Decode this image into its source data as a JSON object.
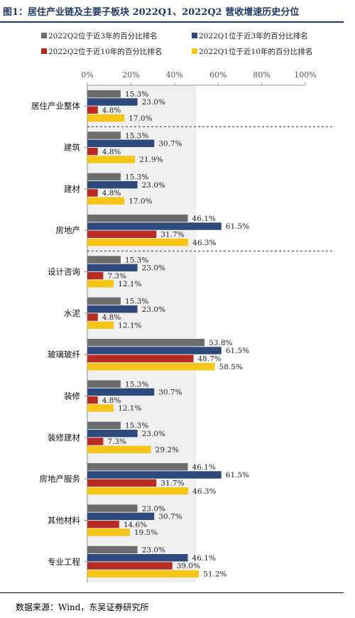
{
  "title": "图1：居住产业链及主要子板块 2022Q1、2022Q2 营收增速历史分位",
  "source": "数据来源：Wind，东吴证券研究所",
  "colors": {
    "title": "#1f3864",
    "q2_3yr": "#6d6d6d",
    "q1_3yr": "#2e4a7d",
    "q2_10yr": "#b72b24",
    "q1_10yr": "#f5c518",
    "shade": "#f0f0f0"
  },
  "chart_data": {
    "type": "bar",
    "orientation": "horizontal",
    "categories": [
      "居住产业整体",
      "建筑",
      "建材",
      "房地产",
      "设计咨询",
      "水泥",
      "玻璃玻纤",
      "装修",
      "装修建材",
      "房地产服务",
      "其他材料",
      "专业工程"
    ],
    "series": [
      {
        "name": "2022Q2位于近3年的百分比排名",
        "values": [
          15.3,
          15.3,
          15.3,
          46.1,
          15.3,
          15.3,
          53.8,
          15.3,
          15.3,
          46.1,
          23.0,
          23.0
        ]
      },
      {
        "name": "2022Q1位于近3年的百分比排名",
        "values": [
          23.0,
          30.7,
          23.0,
          61.5,
          23.0,
          23.0,
          61.5,
          30.7,
          23.0,
          61.5,
          30.7,
          46.1
        ]
      },
      {
        "name": "2022Q2位于近10年的百分比排名",
        "values": [
          4.8,
          4.8,
          4.8,
          31.7,
          7.3,
          4.8,
          48.7,
          4.8,
          7.3,
          31.7,
          14.6,
          39.0
        ]
      },
      {
        "name": "2022Q1位于近10年的百分比排名",
        "values": [
          17.0,
          21.9,
          17.0,
          46.3,
          12.1,
          12.1,
          58.5,
          12.1,
          29.2,
          46.3,
          19.5,
          51.2
        ]
      }
    ],
    "value_labels": [
      [
        "15.3%",
        "15.3%",
        "15.3%",
        "46.1%",
        "15.3%",
        "15.3%",
        "53.8%",
        "15.3%",
        "15.3%",
        "46.1%",
        "23.0%",
        "23.0%"
      ],
      [
        "23.0%",
        "30.7%",
        "23.0%",
        "61.5%",
        "23.0%",
        "23.0%",
        "61.5%",
        "30.7%",
        "23.0%",
        "61.5%",
        "30.7%",
        "46.1%"
      ],
      [
        "4.8%",
        "4.8%",
        "4.8%",
        "31.7%",
        "7.3%",
        "4.8%",
        "48.7%",
        "4.8%",
        "7.3%",
        "31.7%",
        "14.6%",
        "39.0%"
      ],
      [
        "17.0%",
        "21.9%",
        "17.0%",
        "46.3%",
        "12.1%",
        "12.1%",
        "58.5%",
        "12.1%",
        "29.2%",
        "46.3%",
        "19.5%",
        "51.2%"
      ]
    ],
    "xlim": [
      0,
      100
    ],
    "xticks": [
      "0%",
      "20%",
      "40%",
      "60%",
      "80%",
      "100%"
    ],
    "shaded_band": [
      0,
      50
    ],
    "dashed_separators_after": [
      "居住产业整体",
      "房地产"
    ],
    "legend_position": "top",
    "grid": false
  }
}
